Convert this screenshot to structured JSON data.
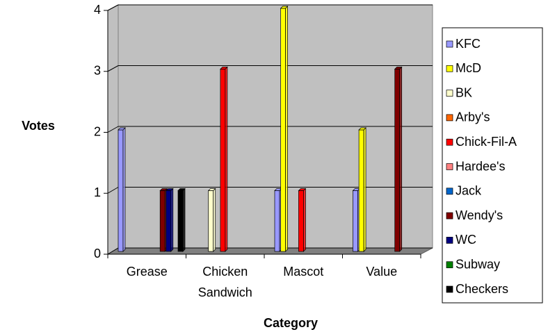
{
  "chart_data": {
    "type": "bar",
    "y_label": "Votes",
    "x_label": "Category",
    "categories": [
      "Grease",
      "Chicken Sandwich",
      "Mascot",
      "Value"
    ],
    "series": [
      {
        "name": "KFC",
        "color": "#9999ff",
        "values": [
          2,
          0,
          1,
          1
        ]
      },
      {
        "name": "McD",
        "color": "#ffff00",
        "values": [
          0,
          0,
          4,
          2
        ]
      },
      {
        "name": "BK",
        "color": "#ffffcc",
        "values": [
          0,
          1,
          0,
          0
        ]
      },
      {
        "name": "Arby's",
        "color": "#ff6600",
        "values": [
          0,
          0,
          0,
          0
        ]
      },
      {
        "name": "Chick-Fil-A",
        "color": "#ff0000",
        "values": [
          0,
          3,
          1,
          0
        ]
      },
      {
        "name": "Hardee's",
        "color": "#ff8080",
        "values": [
          0,
          0,
          0,
          0
        ]
      },
      {
        "name": "Jack",
        "color": "#0066cc",
        "values": [
          0,
          0,
          0,
          0
        ]
      },
      {
        "name": "Wendy's",
        "color": "#800000",
        "values": [
          1,
          0,
          0,
          3
        ]
      },
      {
        "name": "WC",
        "color": "#000080",
        "values": [
          1,
          0,
          0,
          0
        ]
      },
      {
        "name": "Subway",
        "color": "#008000",
        "values": [
          0,
          0,
          0,
          0
        ]
      },
      {
        "name": "Checkers",
        "color": "#000000",
        "values": [
          1,
          0,
          0,
          0
        ]
      }
    ],
    "ylim": [
      0,
      4
    ],
    "yticks": [
      0,
      1,
      2,
      3,
      4
    ],
    "grid": true,
    "legend": "right"
  }
}
